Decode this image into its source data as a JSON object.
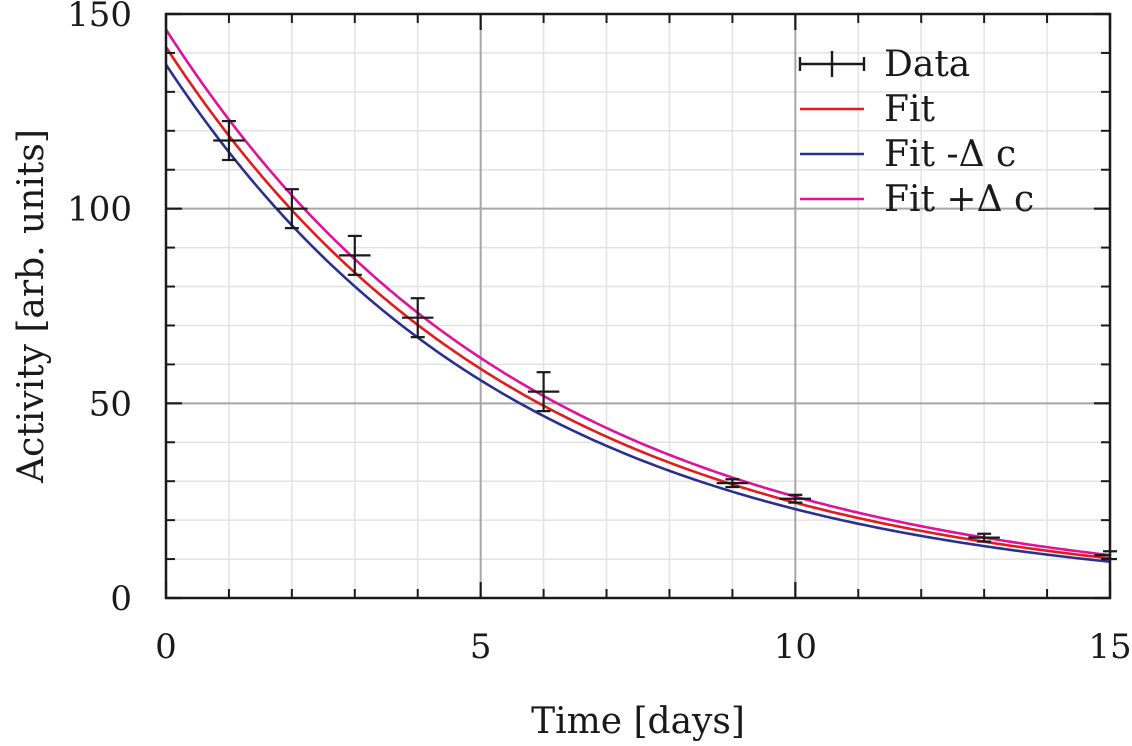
{
  "chart_data": {
    "type": "scatter",
    "title": "",
    "xlabel": "Time [days]",
    "ylabel": "Activity [arb. units]",
    "xlim": [
      0,
      15
    ],
    "ylim": [
      0,
      150
    ],
    "x_ticks": [
      0,
      5,
      10,
      15
    ],
    "y_ticks": [
      0,
      50,
      100,
      150
    ],
    "x_minor_step": 1,
    "y_minor_step": 10,
    "grid": true,
    "legend_position": "top-right",
    "series": [
      {
        "name": "Data",
        "kind": "errorbar",
        "color": "#1a1a1a",
        "x": [
          1,
          2,
          3,
          4,
          6,
          9,
          10,
          13,
          15
        ],
        "y": [
          117.5,
          100,
          88,
          72,
          53,
          29.5,
          25.5,
          15.5,
          11
        ],
        "yerr": [
          5,
          5,
          5,
          5,
          5,
          1,
          1,
          1,
          1
        ],
        "xerr": [
          0.25,
          0.25,
          0.25,
          0.25,
          0.25,
          0.25,
          0.25,
          0.25,
          0.25
        ]
      },
      {
        "name": "Fit",
        "kind": "curve",
        "color": "#e41a1c",
        "model": "A*exp(-x/tau)",
        "A": 141.5,
        "tau": 5.7
      },
      {
        "name": "Fit -Δ c",
        "kind": "curve",
        "color": "#2b3090",
        "model": "A*exp(-x/tau)",
        "A": 137,
        "tau": 5.58
      },
      {
        "name": "Fit +Δ c",
        "kind": "curve",
        "color": "#e0119a",
        "model": "A*exp(-x/tau)",
        "A": 146,
        "tau": 5.8
      }
    ]
  }
}
